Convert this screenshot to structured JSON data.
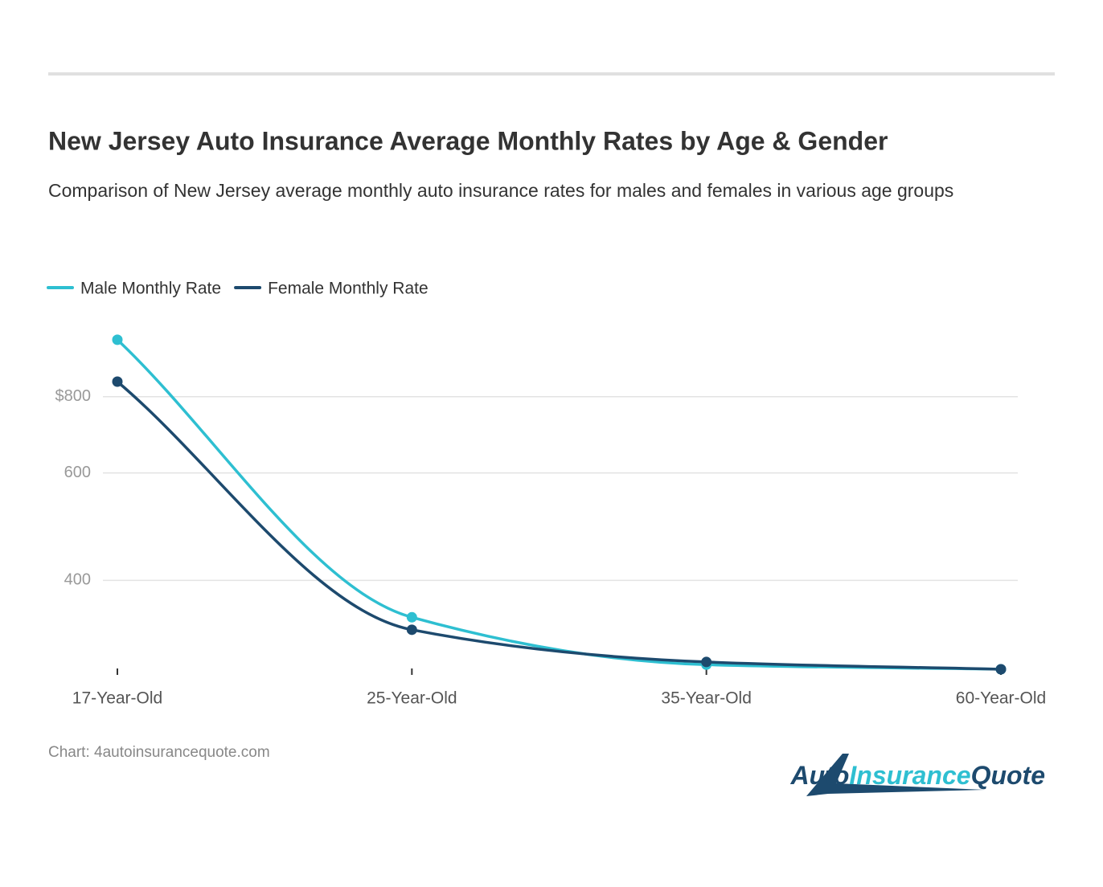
{
  "chart_data": {
    "type": "line",
    "title": "New Jersey Auto Insurance Average Monthly Rates by Age & Gender",
    "subtitle": "Comparison of New Jersey average monthly auto insurance rates for males and females in various age groups",
    "categories": [
      "17-Year-Old",
      "25-Year-Old",
      "35-Year-Old",
      "60-Year-Old"
    ],
    "series": [
      {
        "name": "Male Monthly Rate",
        "color": "#2ebfd1",
        "values": [
          992,
          348,
          291,
          286
        ]
      },
      {
        "name": "Female Monthly Rate",
        "color": "#1d4a6e",
        "values": [
          847,
          332,
          294,
          286
        ]
      }
    ],
    "ylim": [
      280,
      1060
    ],
    "yticks": [
      400,
      600,
      {
        "value": 800,
        "label": "$800"
      }
    ],
    "log_scale": true,
    "grid": true,
    "legend": "top-left",
    "source": "Chart: 4autoinsurancequote.com",
    "logo": [
      "Auto",
      "Insurance",
      "Quote"
    ]
  }
}
